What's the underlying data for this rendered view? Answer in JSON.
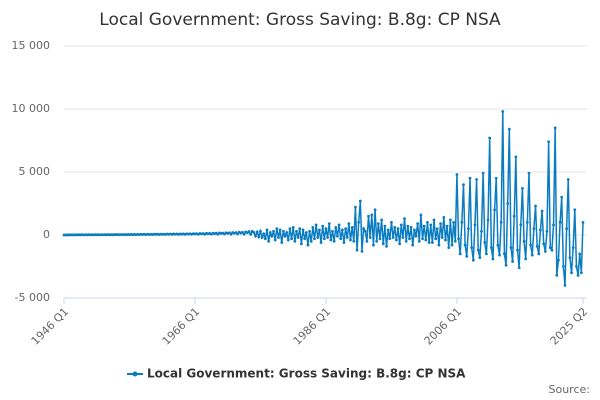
{
  "chart_data": {
    "type": "line",
    "title": "Local Government: Gross Saving: B.8g: CP NSA",
    "source_label": "Source:",
    "categories": [
      "1946 Q1",
      null,
      null,
      null,
      null,
      null,
      null,
      null,
      null,
      null,
      null,
      null,
      null,
      null,
      null,
      null,
      null,
      null,
      null,
      null,
      null,
      null,
      null,
      null,
      null,
      null,
      null,
      null,
      null,
      null,
      null,
      null,
      null,
      null,
      null,
      null,
      null,
      null,
      null,
      null,
      null,
      null,
      null,
      null,
      null,
      null,
      null,
      null,
      null,
      null,
      null,
      null,
      null,
      null,
      null,
      null,
      null,
      null,
      null,
      null,
      null,
      null,
      null,
      null,
      null,
      null,
      null,
      null,
      null,
      null,
      null,
      null,
      null,
      null,
      null,
      null,
      null,
      null,
      null,
      null,
      "1966 Q1",
      null,
      null,
      null,
      null,
      null,
      null,
      null,
      null,
      null,
      null,
      null,
      null,
      null,
      null,
      null,
      null,
      null,
      null,
      null,
      null,
      null,
      null,
      null,
      null,
      null,
      null,
      null,
      null,
      null,
      null,
      null,
      null,
      null,
      null,
      null,
      null,
      null,
      null,
      null,
      null,
      null,
      null,
      null,
      null,
      null,
      null,
      null,
      null,
      null,
      null,
      null,
      null,
      null,
      null,
      null,
      null,
      null,
      null,
      null,
      null,
      null,
      null,
      null,
      null,
      null,
      null,
      null,
      null,
      null,
      null,
      null,
      null,
      null,
      null,
      null,
      null,
      null,
      null,
      null,
      "1986 Q1",
      null,
      null,
      null,
      null,
      null,
      null,
      null,
      null,
      null,
      null,
      null,
      null,
      null,
      null,
      null,
      null,
      null,
      null,
      null,
      null,
      null,
      null,
      null,
      null,
      null,
      null,
      null,
      null,
      null,
      null,
      null,
      null,
      null,
      null,
      null,
      null,
      null,
      null,
      null,
      null,
      null,
      null,
      null,
      null,
      null,
      null,
      null,
      null,
      null,
      null,
      null,
      null,
      null,
      null,
      null,
      null,
      null,
      null,
      null,
      null,
      null,
      null,
      null,
      null,
      null,
      null,
      null,
      null,
      null,
      null,
      null,
      null,
      null,
      null,
      null,
      null,
      null,
      null,
      null,
      "2006 Q1",
      null,
      null,
      null,
      null,
      null,
      null,
      null,
      null,
      null,
      null,
      null,
      null,
      null,
      null,
      null,
      null,
      null,
      null,
      null,
      null,
      null,
      null,
      null,
      null,
      null,
      null,
      null,
      null,
      null,
      null,
      null,
      null,
      null,
      null,
      null,
      null,
      null,
      null,
      null,
      null,
      null,
      null,
      null,
      null,
      null,
      null,
      null,
      null,
      null,
      null,
      null,
      null,
      null,
      null,
      null,
      null,
      null,
      null,
      null,
      null,
      null,
      null,
      null,
      null,
      null,
      null,
      null,
      null,
      null,
      null,
      null,
      null,
      null,
      null,
      null,
      null,
      "2025 Q2"
    ],
    "series": [
      {
        "name": "Local Government: Gross Saving: B.8g: CP NSA",
        "color": "#0a7cc2",
        "values": [
          0,
          10,
          -5,
          15,
          5,
          15,
          0,
          20,
          10,
          20,
          5,
          25,
          10,
          20,
          5,
          25,
          15,
          25,
          10,
          30,
          15,
          25,
          10,
          30,
          20,
          30,
          15,
          35,
          20,
          30,
          15,
          35,
          25,
          35,
          20,
          40,
          25,
          40,
          20,
          45,
          30,
          45,
          25,
          50,
          30,
          50,
          25,
          55,
          35,
          55,
          30,
          60,
          40,
          60,
          30,
          65,
          45,
          65,
          35,
          70,
          50,
          70,
          40,
          75,
          55,
          80,
          45,
          85,
          60,
          85,
          50,
          90,
          65,
          90,
          50,
          100,
          70,
          100,
          55,
          110,
          80,
          110,
          60,
          120,
          90,
          120,
          60,
          140,
          100,
          130,
          70,
          150,
          100,
          150,
          60,
          170,
          120,
          160,
          80,
          180,
          130,
          180,
          60,
          200,
          140,
          200,
          80,
          230,
          150,
          220,
          60,
          250,
          180,
          280,
          50,
          300,
          200,
          -100,
          250,
          -150,
          300,
          -200,
          100,
          -300,
          400,
          -500,
          200,
          -100,
          300,
          -400,
          500,
          -200,
          400,
          -600,
          300,
          -100,
          200,
          -400,
          500,
          -300,
          600,
          -500,
          300,
          -200,
          500,
          -700,
          400,
          -300,
          200,
          -800,
          300,
          -500,
          600,
          -300,
          800,
          -200,
          400,
          -600,
          700,
          -300,
          500,
          -200,
          900,
          -400,
          300,
          -500,
          600,
          -100,
          800,
          -300,
          400,
          -600,
          500,
          -200,
          900,
          -400,
          600,
          -500,
          2200,
          -1200,
          1000,
          2700,
          -1300,
          500,
          300,
          -500,
          1500,
          -200,
          1600,
          -800,
          2000,
          -500,
          900,
          -300,
          1200,
          -700,
          700,
          -900,
          400,
          -300,
          1000,
          -200,
          600,
          -400,
          500,
          -700,
          800,
          -200,
          1300,
          -500,
          700,
          -300,
          600,
          -800,
          400,
          -100,
          900,
          -500,
          1600,
          -300,
          700,
          -400,
          1000,
          -600,
          800,
          -600,
          1200,
          -300,
          500,
          -800,
          900,
          -200,
          1400,
          -400,
          700,
          -1000,
          1200,
          -800,
          1000,
          -500,
          4800,
          -300,
          -1500,
          1000,
          4000,
          -800,
          -1700,
          500,
          4500,
          -1000,
          -2000,
          800,
          4400,
          -1200,
          -1800,
          300,
          4900,
          -600,
          -1500,
          1200,
          7700,
          -1000,
          -1900,
          2000,
          4500,
          -800,
          -1600,
          1000,
          9800,
          -1500,
          -2400,
          2500,
          8400,
          -1000,
          -2100,
          1500,
          6200,
          -1200,
          -2600,
          800,
          3700,
          -500,
          -1900,
          1000,
          4900,
          -800,
          -1600,
          500,
          2300,
          -900,
          -1500,
          400,
          1900,
          -700,
          -1300,
          300,
          7400,
          -1000,
          -1200,
          800,
          8500,
          -3200,
          -2000,
          1000,
          3000,
          -2500,
          -4000,
          500,
          4400,
          -1800,
          -3000,
          -1000,
          2000,
          -2500,
          -3200,
          -1500,
          -3000,
          1000
        ]
      }
    ],
    "ylim": [
      -5000,
      15000
    ],
    "yticks": [
      {
        "value": -5000,
        "label": "-5 000"
      },
      0,
      {
        "value": 5000,
        "label": "5 000"
      },
      {
        "value": 10000,
        "label": "10 000"
      },
      {
        "value": 15000,
        "label": "15 000"
      }
    ],
    "grid": true
  }
}
